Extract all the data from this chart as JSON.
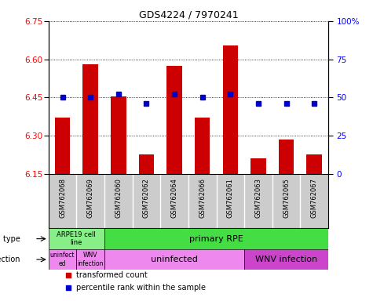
{
  "title": "GDS4224 / 7970241",
  "samples": [
    "GSM762068",
    "GSM762069",
    "GSM762060",
    "GSM762062",
    "GSM762064",
    "GSM762066",
    "GSM762061",
    "GSM762063",
    "GSM762065",
    "GSM762067"
  ],
  "transformed_counts": [
    6.37,
    6.58,
    6.455,
    6.225,
    6.575,
    6.37,
    6.655,
    6.21,
    6.285,
    6.225
  ],
  "percentile_ranks": [
    50,
    50,
    52,
    46,
    52,
    50,
    52,
    46,
    46,
    46
  ],
  "ylim": [
    6.15,
    6.75
  ],
  "yticks": [
    6.15,
    6.3,
    6.45,
    6.6,
    6.75
  ],
  "y2lim": [
    0,
    100
  ],
  "y2ticks": [
    0,
    25,
    50,
    75,
    100
  ],
  "y2ticklabels": [
    "0",
    "25",
    "50",
    "75",
    "100%"
  ],
  "bar_color": "#cc0000",
  "dot_color": "#0000cc",
  "cell_type_colors": [
    "#88ee88",
    "#44dd44"
  ],
  "infection_colors_light": "#ee88ee",
  "infection_colors_dark": "#cc44cc",
  "tick_bg_color": "#cccccc",
  "cell_type_arpe_color": "#88ee88",
  "cell_type_primary_color": "#44dd44",
  "legend_items": [
    {
      "color": "#cc0000",
      "label": "transformed count"
    },
    {
      "color": "#0000cc",
      "label": "percentile rank within the sample"
    }
  ]
}
